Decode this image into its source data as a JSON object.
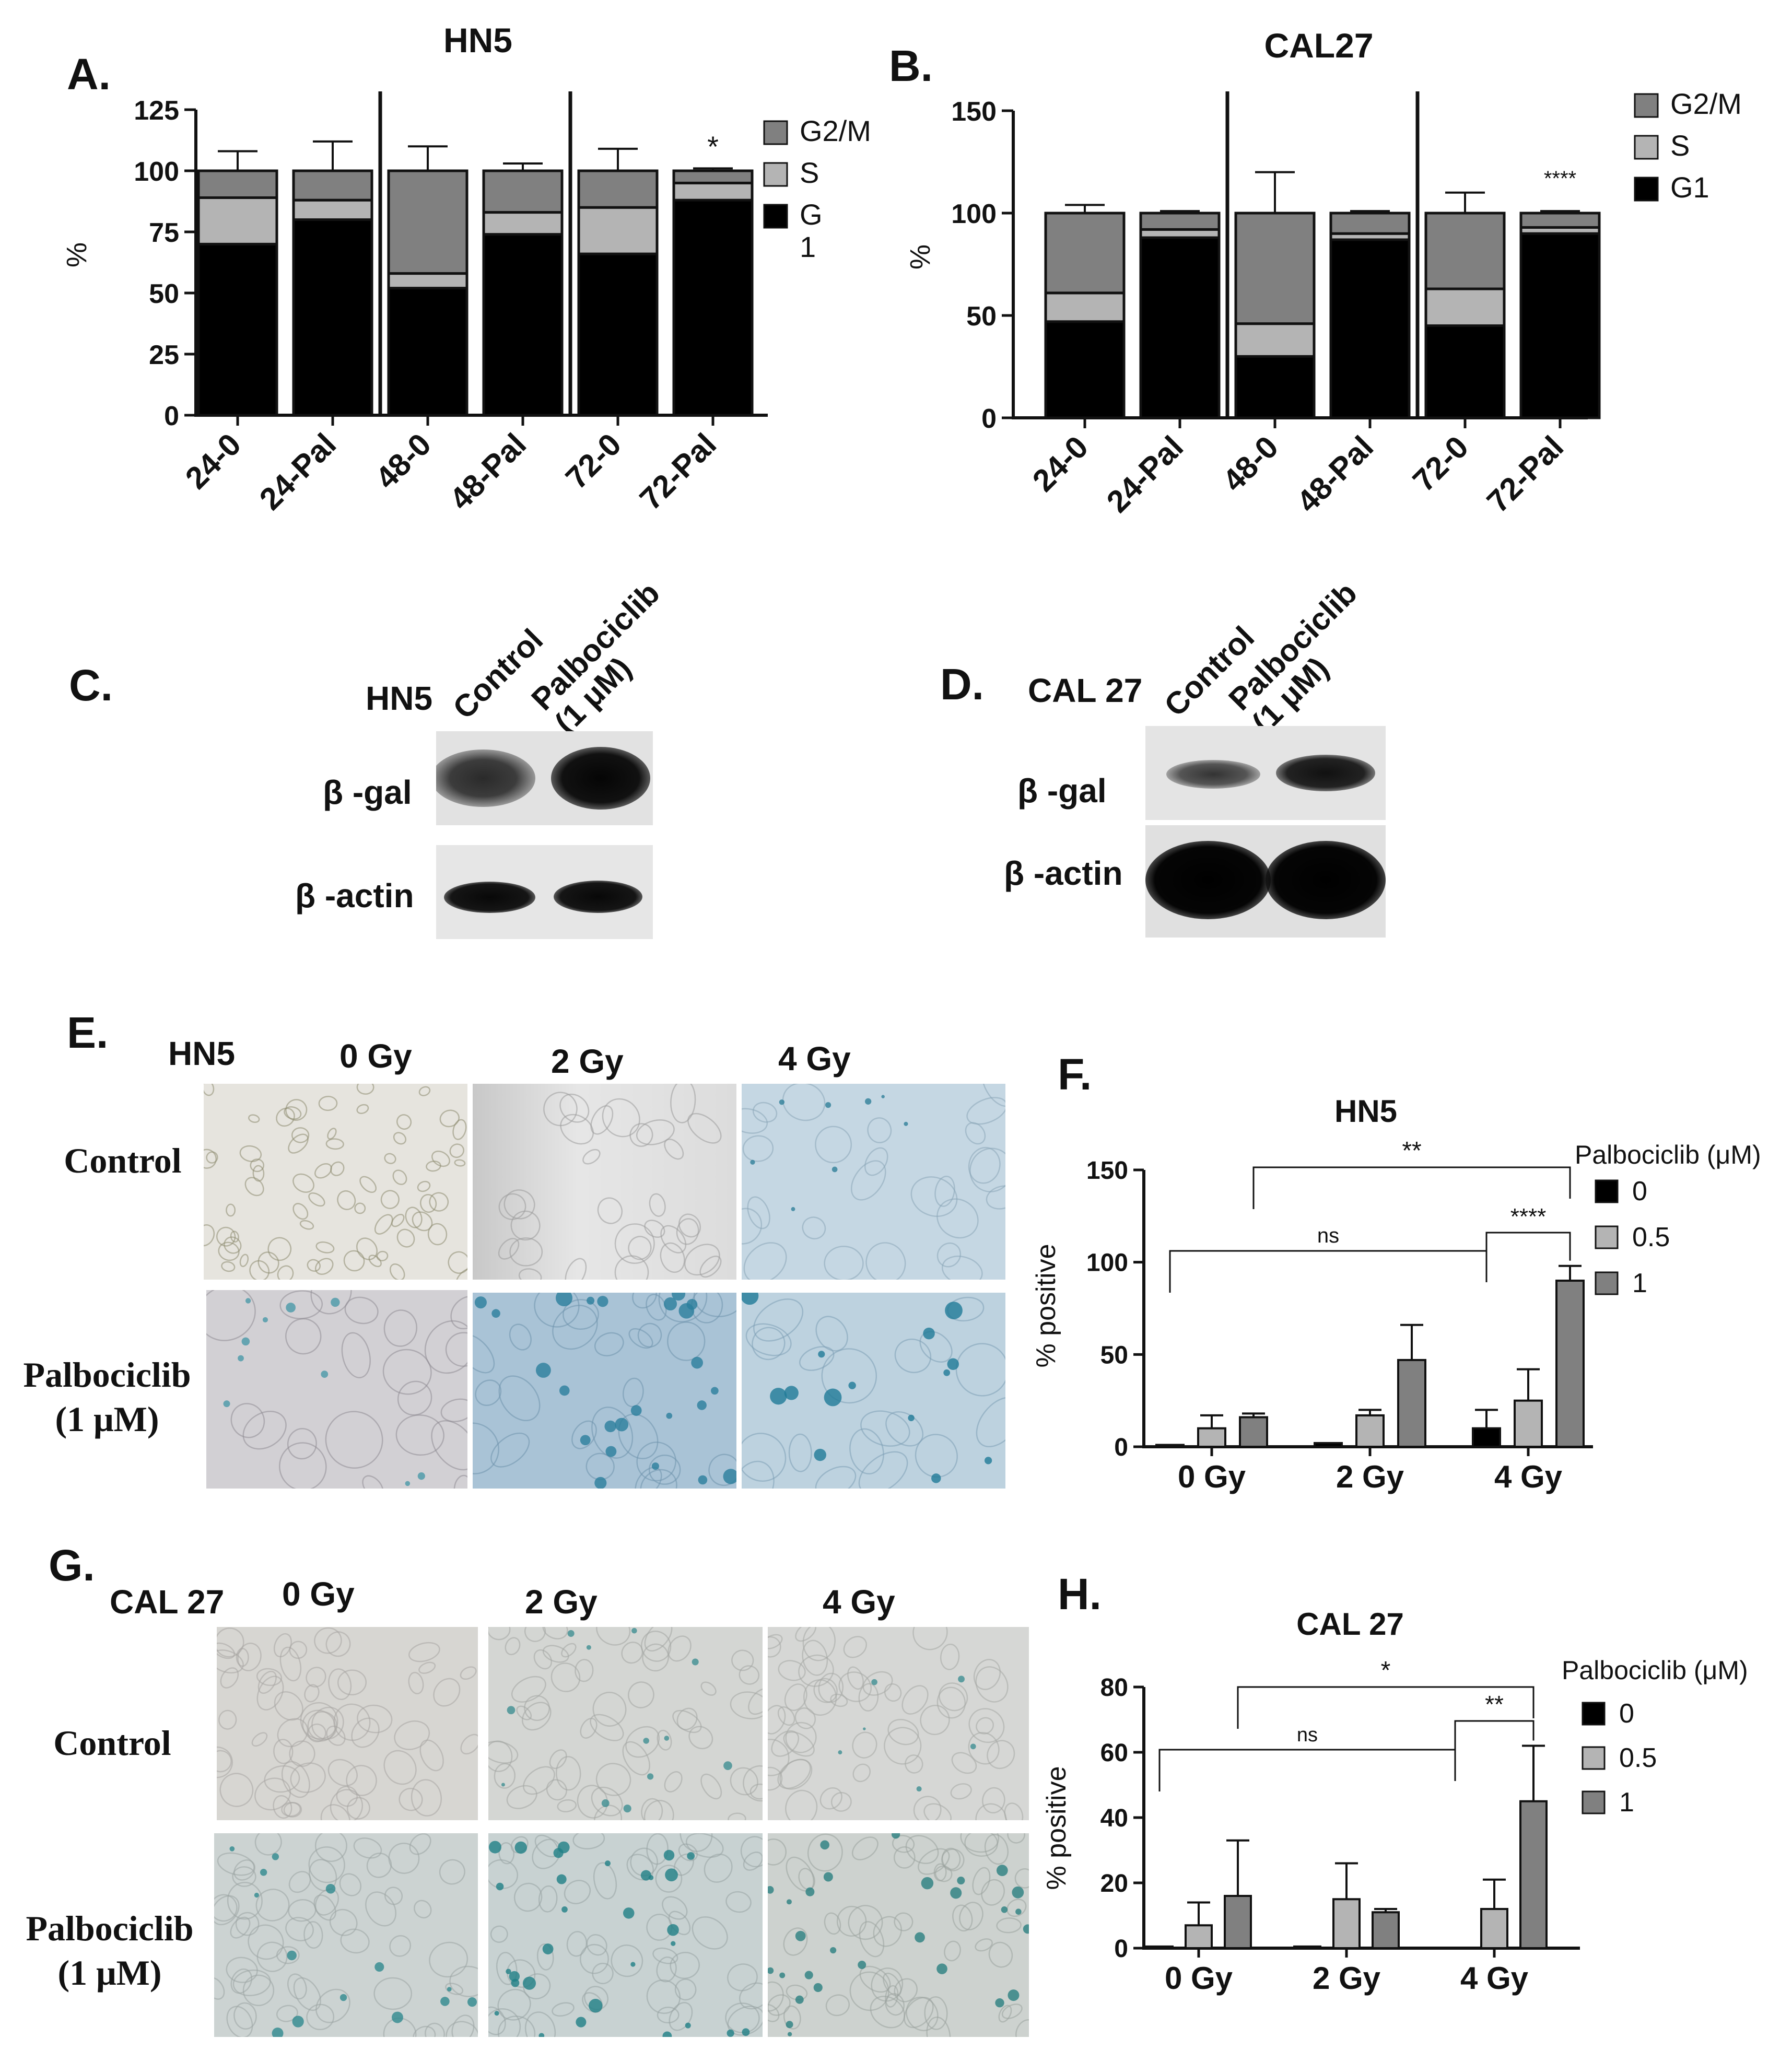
{
  "panel_labels": {
    "A": "A.",
    "B": "B.",
    "C": "C.",
    "D": "D.",
    "E": "E.",
    "F": "F.",
    "G": "G.",
    "H": "H."
  },
  "colors": {
    "G1": "#000000",
    "S": "#b4b4b4",
    "G2M": "#808080",
    "blot_bg": "#dedede",
    "band": "#111111",
    "stain_blue": "#3d8fa6"
  },
  "chart_data": [
    {
      "id": "A",
      "type": "bar",
      "stacked": true,
      "title": "HN5",
      "ylabel": "%",
      "ylim": [
        0,
        125
      ],
      "yticks": [
        "0",
        "25",
        "50",
        "75",
        "100",
        "125"
      ],
      "categories": [
        "24-0",
        "24-Pal",
        "48-0",
        "48-Pal",
        "72-0",
        "72-Pal"
      ],
      "separators_after": [
        2,
        4
      ],
      "series": [
        {
          "name": "G1",
          "legend": "G\n1",
          "values": [
            70,
            80,
            52,
            74,
            66,
            88
          ]
        },
        {
          "name": "S",
          "legend": "S",
          "values": [
            19,
            8,
            6,
            9,
            19,
            7
          ]
        },
        {
          "name": "G2/M",
          "legend": "G2/M",
          "values": [
            11,
            12,
            42,
            17,
            15,
            5
          ]
        }
      ],
      "errors": {
        "G1": [
          8,
          0,
          6,
          7,
          7,
          0
        ],
        "S": [
          4,
          4,
          4,
          3,
          5,
          2
        ],
        "G2M": [
          8,
          12,
          10,
          3,
          9,
          1
        ]
      },
      "annotations": [
        {
          "category": "72-Pal",
          "text": "*"
        }
      ]
    },
    {
      "id": "B",
      "type": "bar",
      "stacked": true,
      "title": "CAL27",
      "ylabel": "%",
      "ylim": [
        0,
        150
      ],
      "yticks": [
        "0",
        "50",
        "100",
        "150"
      ],
      "categories": [
        "24-0",
        "24-Pal",
        "48-0",
        "48-Pal",
        "72-0",
        "72-Pal"
      ],
      "separators_after": [
        2,
        4
      ],
      "series": [
        {
          "name": "G1",
          "legend": "G1",
          "values": [
            47,
            88,
            30,
            87,
            45,
            90
          ]
        },
        {
          "name": "S",
          "legend": "S",
          "values": [
            14,
            4,
            16,
            3,
            18,
            3
          ]
        },
        {
          "name": "G2/M",
          "legend": "G2/M",
          "values": [
            39,
            8,
            54,
            10,
            37,
            7
          ]
        }
      ],
      "errors": {
        "G1": [
          7,
          0,
          6,
          0,
          7,
          0
        ],
        "S": [
          11,
          2,
          6,
          2,
          5,
          1
        ],
        "G2M": [
          4,
          1,
          20,
          1,
          10,
          1
        ]
      },
      "annotations": [
        {
          "category": "72-Pal",
          "text": "****"
        }
      ]
    },
    {
      "id": "F",
      "type": "bar",
      "title": "HN5",
      "ylabel": "% positive",
      "ylim": [
        0,
        150
      ],
      "yticks": [
        "0",
        "50",
        "100",
        "150"
      ],
      "categories": [
        "0 Gy",
        "2 Gy",
        "4 Gy"
      ],
      "legend_title": "Palbociclib (μM)",
      "series": [
        {
          "name": "0",
          "values": [
            1,
            2,
            10
          ],
          "errors": [
            0,
            0,
            10
          ]
        },
        {
          "name": "0.5",
          "values": [
            10,
            17,
            25
          ],
          "errors": [
            7,
            3,
            17
          ]
        },
        {
          "name": "1",
          "values": [
            16,
            47,
            90
          ],
          "errors": [
            2,
            19,
            8
          ]
        }
      ],
      "significance": [
        {
          "text": "ns",
          "from": "0 Gy / 0",
          "to": "4 Gy / 0"
        },
        {
          "text": "**",
          "from": "0 Gy / 1",
          "to": "4 Gy / 1"
        },
        {
          "text": "****",
          "from": "4 Gy / 0",
          "to": "4 Gy / 1"
        }
      ]
    },
    {
      "id": "H",
      "type": "bar",
      "title": "CAL 27",
      "ylabel": "% positive",
      "ylim": [
        0,
        80
      ],
      "yticks": [
        "0",
        "20",
        "40",
        "60",
        "80"
      ],
      "categories": [
        "0 Gy",
        "2 Gy",
        "4 Gy"
      ],
      "legend_title": "Palbociclib (μM)",
      "series": [
        {
          "name": "0",
          "values": [
            0.5,
            0.5,
            0
          ],
          "errors": [
            0,
            0,
            0
          ]
        },
        {
          "name": "0.5",
          "values": [
            7,
            15,
            12
          ],
          "errors": [
            7,
            11,
            9
          ]
        },
        {
          "name": "1",
          "values": [
            16,
            11,
            45
          ],
          "errors": [
            17,
            1,
            17
          ]
        }
      ],
      "significance": [
        {
          "text": "ns",
          "from": "0 Gy / 0",
          "to": "4 Gy / 0"
        },
        {
          "text": "*",
          "from": "0 Gy / 1",
          "to": "4 Gy / 1"
        },
        {
          "text": "**",
          "from": "4 Gy / 0",
          "to": "4 Gy / 1"
        }
      ]
    }
  ],
  "blot_C": {
    "cell_line": "HN5",
    "lanes": [
      "Control",
      "Palbociclib\n(1 μM)"
    ],
    "rows": [
      "β -gal",
      "β -actin"
    ]
  },
  "blot_D": {
    "cell_line": "CAL 27",
    "lanes": [
      "Control",
      "Palbociclib\n(1 μM)"
    ],
    "rows": [
      "β -gal",
      "β -actin"
    ]
  },
  "micro_E": {
    "cell_line": "HN5",
    "doses": [
      "0 Gy",
      "2 Gy",
      "4 Gy"
    ],
    "rows": [
      "Control",
      "Palbociclib\n(1 μM)"
    ]
  },
  "micro_G": {
    "cell_line": "CAL 27",
    "doses": [
      "0 Gy",
      "2 Gy",
      "4 Gy"
    ],
    "rows": [
      "Control",
      "Palbociclib\n(1 μM)"
    ]
  }
}
